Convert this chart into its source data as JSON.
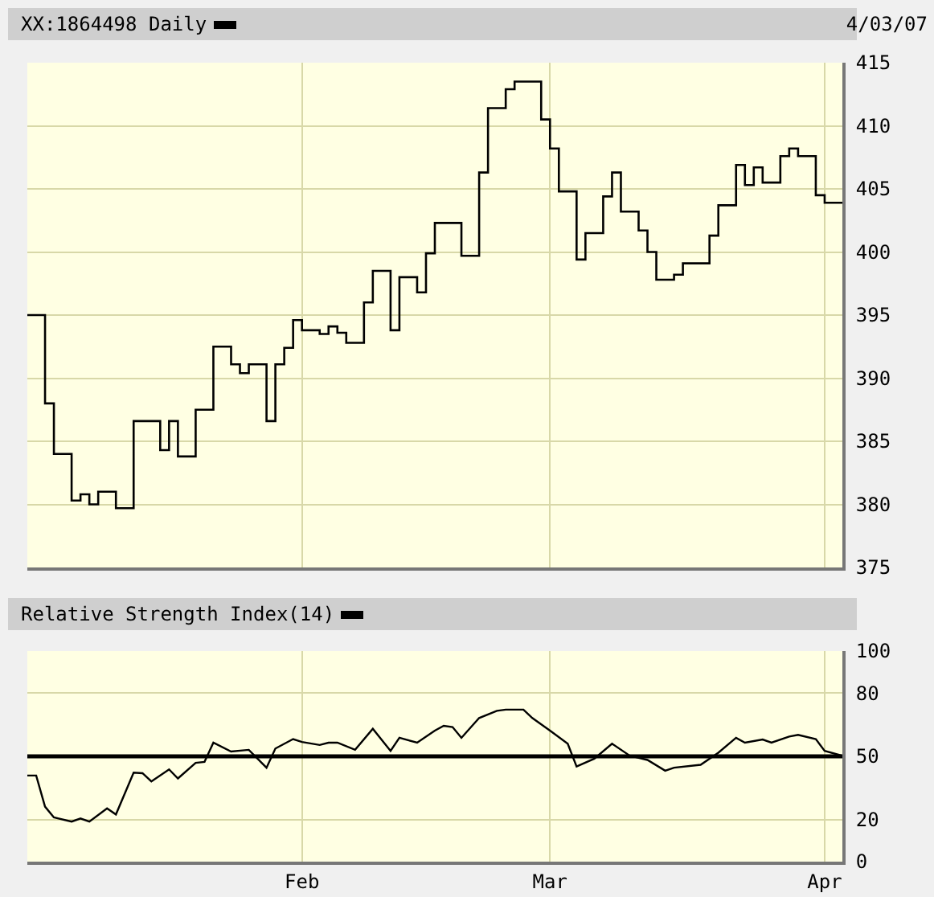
{
  "chart_data": [
    {
      "type": "step",
      "title": "XX:1864498 Daily",
      "annotations": [
        "4/03/07"
      ],
      "color": "#000000",
      "x": [
        "--01-01",
        "--01-03",
        "--01-04",
        "--01-06",
        "--01-07",
        "--01-08",
        "--01-09",
        "--01-11",
        "--01-13",
        "--01-16",
        "--01-17",
        "--01-18",
        "--01-20",
        "--01-22",
        "--01-24",
        "--01-25",
        "--01-26",
        "--01-28",
        "--01-29",
        "--01-30",
        "--01-31",
        "--02-01",
        "--02-03",
        "--02-04",
        "--02-05",
        "--02-06",
        "--02-08",
        "--02-09",
        "--02-11",
        "--02-12",
        "--02-14",
        "--02-15",
        "--02-16",
        "--02-19",
        "--02-21",
        "--02-22",
        "--02-24",
        "--02-25",
        "--02-28",
        "--03-01",
        "--03-02",
        "--03-04",
        "--03-05",
        "--03-07",
        "--03-08",
        "--03-09",
        "--03-11",
        "--03-12",
        "--03-13",
        "--03-15",
        "--03-16",
        "--03-19",
        "--03-20",
        "--03-22",
        "--03-23",
        "--03-24",
        "--03-25",
        "--03-27",
        "--03-28",
        "--03-29",
        "--03-31",
        "--04-01",
        "--04-03"
      ],
      "values": [
        395.0,
        388.0,
        384.0,
        380.3,
        380.8,
        380.0,
        381.0,
        379.7,
        386.6,
        384.3,
        386.6,
        383.8,
        387.5,
        392.5,
        391.1,
        390.4,
        391.1,
        386.6,
        391.1,
        392.4,
        394.6,
        393.8,
        393.5,
        394.1,
        393.6,
        392.8,
        396.0,
        398.5,
        393.8,
        398.0,
        396.8,
        399.9,
        402.3,
        399.7,
        406.3,
        411.4,
        412.9,
        413.5,
        410.5,
        408.2,
        404.8,
        399.4,
        401.5,
        404.4,
        406.3,
        403.2,
        401.7,
        400.0,
        397.8,
        398.2,
        399.1,
        401.3,
        403.7,
        406.9,
        405.3,
        406.7,
        405.5,
        407.6,
        408.2,
        407.6,
        404.5,
        403.9,
        403.9
      ],
      "xlim": [
        "--01-01",
        "--04-03"
      ],
      "xticks": [
        {
          "value": "--02-01",
          "label": "Feb"
        },
        {
          "value": "--03-01",
          "label": "Mar"
        },
        {
          "value": "--04-01",
          "label": "Apr"
        }
      ],
      "ylim": [
        375,
        415
      ],
      "yticks": [
        375,
        380,
        385,
        390,
        395,
        400,
        405,
        410,
        415
      ],
      "grid": true,
      "tick_labels": "y",
      "marker": "none"
    },
    {
      "type": "line",
      "title": "Relative Strength Index(14)",
      "color": "#000000",
      "x": [
        "--01-01",
        "--01-02",
        "--01-03",
        "--01-04",
        "--01-06",
        "--01-07",
        "--01-08",
        "--01-10",
        "--01-11",
        "--01-13",
        "--01-14",
        "--01-15",
        "--01-17",
        "--01-18",
        "--01-20",
        "--01-21",
        "--01-22",
        "--01-24",
        "--01-26",
        "--01-28",
        "--01-29",
        "--01-31",
        "--02-01",
        "--02-03",
        "--02-04",
        "--02-05",
        "--02-07",
        "--02-09",
        "--02-11",
        "--02-12",
        "--02-14",
        "--02-16",
        "--02-17",
        "--02-18",
        "--02-19",
        "--02-21",
        "--02-23",
        "--02-24",
        "--02-26",
        "--02-27",
        "--03-01",
        "--03-03",
        "--03-04",
        "--03-06",
        "--03-08",
        "--03-10",
        "--03-12",
        "--03-14",
        "--03-15",
        "--03-18",
        "--03-20",
        "--03-22",
        "--03-23",
        "--03-25",
        "--03-26",
        "--03-28",
        "--03-29",
        "--03-31",
        "--04-01",
        "--04-03"
      ],
      "values": [
        40.9,
        40.9,
        26.1,
        21.0,
        19.0,
        20.5,
        19.0,
        25.3,
        22.4,
        42.3,
        42.0,
        38.1,
        43.8,
        39.5,
        46.9,
        47.4,
        56.5,
        52.3,
        53.1,
        44.6,
        53.7,
        58.2,
        56.8,
        55.4,
        56.5,
        56.5,
        53.1,
        63.1,
        52.6,
        58.8,
        56.5,
        62.2,
        64.5,
        63.9,
        58.8,
        68.2,
        71.6,
        72.2,
        72.2,
        68.2,
        62.2,
        56.0,
        45.2,
        48.9,
        56.0,
        50.3,
        48.3,
        43.2,
        44.6,
        46.0,
        51.7,
        58.8,
        56.5,
        58.0,
        56.5,
        59.4,
        60.2,
        58.2,
        52.6,
        50.3
      ],
      "xlim": [
        "--01-01",
        "--04-03"
      ],
      "xticks": [
        {
          "value": "--02-01",
          "label": "Feb"
        },
        {
          "value": "--03-01",
          "label": "Mar"
        },
        {
          "value": "--04-01",
          "label": "Apr"
        }
      ],
      "ylim": [
        0,
        100
      ],
      "yticks": [
        0,
        20,
        50,
        80,
        100
      ],
      "ref_lines": [
        {
          "axis": "y",
          "value": 50,
          "color": "#000000"
        }
      ],
      "grid": true,
      "marker": "none"
    }
  ]
}
